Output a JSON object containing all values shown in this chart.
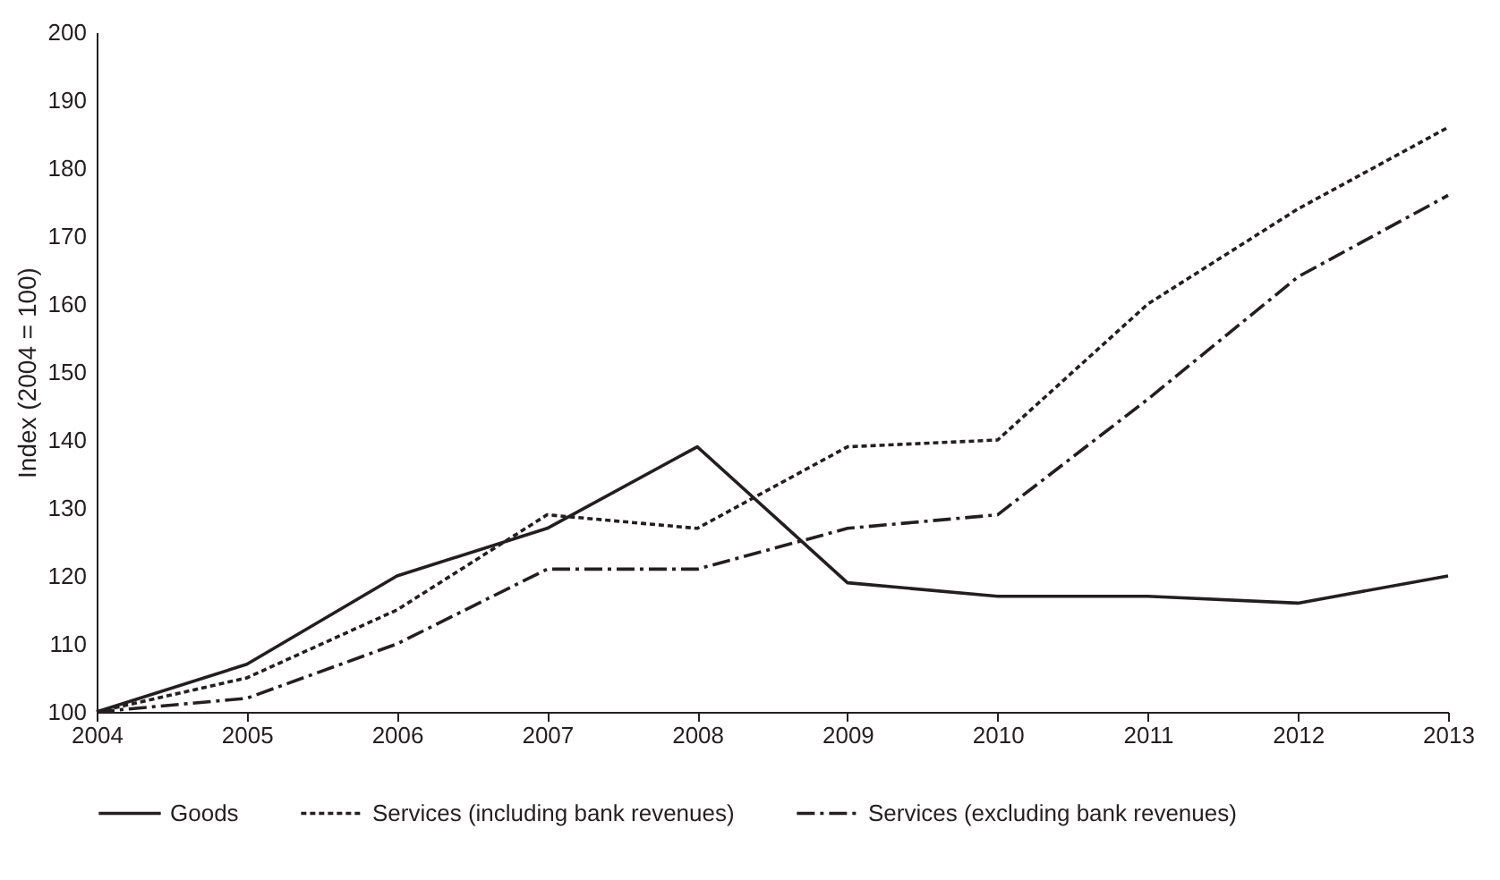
{
  "chart_data": {
    "type": "line",
    "ylabel": "Index (2004 = 100)",
    "categories": [
      "2004",
      "2005",
      "2006",
      "2007",
      "2008",
      "2009",
      "2010",
      "2011",
      "2012",
      "2013"
    ],
    "series": [
      {
        "name": "Goods",
        "color": "#231f20",
        "line_style": "solid",
        "values": [
          100,
          107,
          120,
          127,
          139,
          119,
          117,
          117,
          116,
          120
        ]
      },
      {
        "name": "Services (including bank revenues)",
        "color": "#231f20",
        "line_style": "dotted",
        "values": [
          100,
          105,
          115,
          129,
          127,
          139,
          140,
          160,
          174,
          186
        ]
      },
      {
        "name": "Services (excluding bank revenues)",
        "color": "#231f20",
        "line_style": "dashdot",
        "values": [
          100,
          102,
          110,
          121,
          121,
          127,
          129,
          146,
          164,
          176
        ]
      }
    ],
    "ylim": [
      100,
      200
    ],
    "yticks": [
      100,
      110,
      120,
      130,
      140,
      150,
      160,
      170,
      180,
      190,
      200
    ],
    "grid": false,
    "legend": "bottom",
    "marker": "none"
  }
}
